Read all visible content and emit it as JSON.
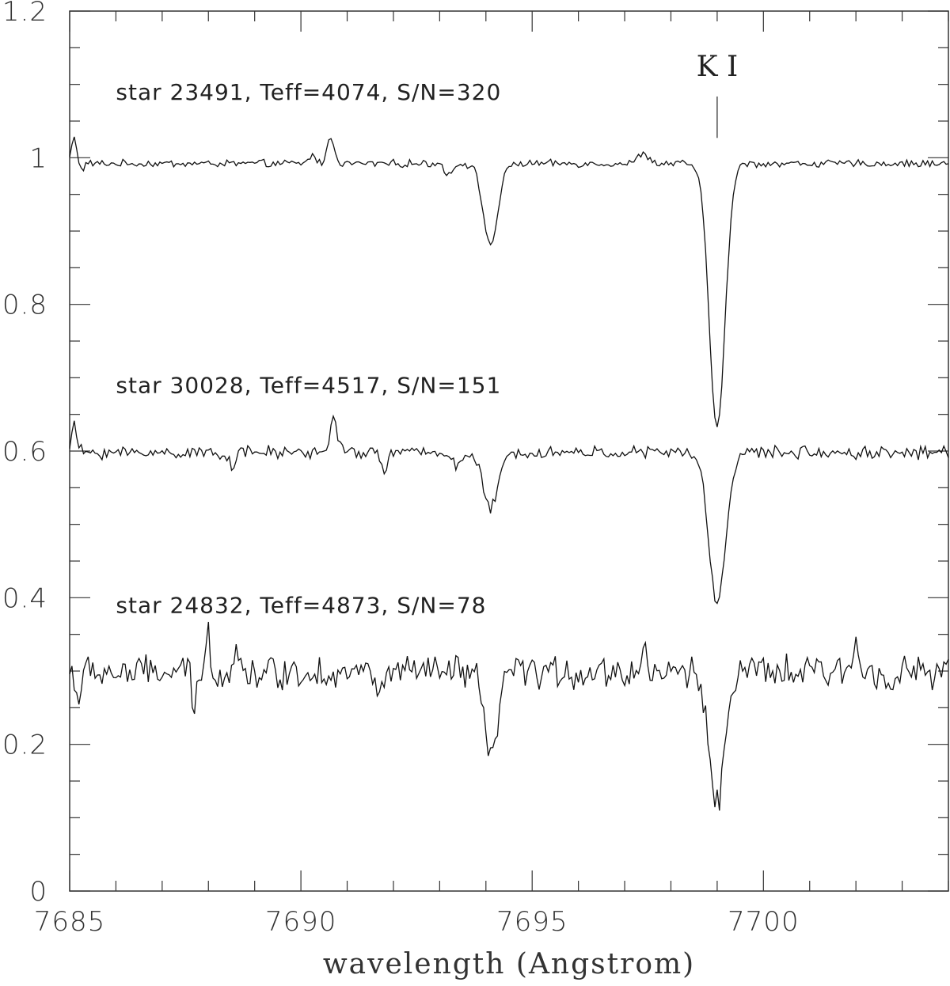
{
  "chart_data": {
    "type": "line",
    "xlabel": "wavelength (Angstrom)",
    "ylabel": "",
    "xlim": [
      7685,
      7704
    ],
    "ylim": [
      0,
      1.2
    ],
    "x_ticks": [
      7685,
      7690,
      7695,
      7700
    ],
    "x_tick_labels": [
      "7685",
      "7690",
      "7695",
      "7700"
    ],
    "y_ticks": [
      0,
      0.2,
      0.4,
      0.6,
      0.8,
      1,
      1.2
    ],
    "y_tick_labels": [
      "0",
      "0.2",
      "0.4",
      "0.6",
      "0.8",
      "1",
      "1.2"
    ],
    "line_marker": {
      "label": "K I",
      "x": 7699.0,
      "y_top": 1.09,
      "y_bottom": 1.04
    },
    "grid": false,
    "series": [
      {
        "label": "star 23491, Teff=4074, S/N=320",
        "label_pos": [
          7686.0,
          1.09
        ],
        "baseline": 0.992,
        "noise": 0.004,
        "features": [
          {
            "x": 7685.1,
            "depth": -0.035,
            "width": 0.06
          },
          {
            "x": 7685.25,
            "depth": 0.01,
            "width": 0.05
          },
          {
            "x": 7690.65,
            "depth": -0.035,
            "width": 0.08
          },
          {
            "x": 7690.25,
            "depth": -0.012,
            "width": 0.07
          },
          {
            "x": 7693.2,
            "depth": 0.015,
            "width": 0.08
          },
          {
            "x": 7694.1,
            "depth": 0.11,
            "width": 0.16
          },
          {
            "x": 7697.4,
            "depth": -0.015,
            "width": 0.1
          },
          {
            "x": 7699.0,
            "depth": 0.36,
            "width": 0.17
          }
        ]
      },
      {
        "label": "star 30028, Teff=4517, S/N=151",
        "label_pos": [
          7686.0,
          0.69
        ],
        "baseline": 0.598,
        "noise": 0.007,
        "features": [
          {
            "x": 7685.1,
            "depth": -0.035,
            "width": 0.06
          },
          {
            "x": 7690.7,
            "depth": -0.045,
            "width": 0.08
          },
          {
            "x": 7688.5,
            "depth": 0.02,
            "width": 0.06
          },
          {
            "x": 7691.8,
            "depth": 0.02,
            "width": 0.08
          },
          {
            "x": 7693.4,
            "depth": 0.02,
            "width": 0.08
          },
          {
            "x": 7694.1,
            "depth": 0.075,
            "width": 0.17
          },
          {
            "x": 7699.0,
            "depth": 0.205,
            "width": 0.18
          }
        ]
      },
      {
        "label": "star 24832, Teff=4873, S/N=78",
        "label_pos": [
          7686.0,
          0.39
        ],
        "baseline": 0.298,
        "noise": 0.018,
        "features": [
          {
            "x": 7685.2,
            "depth": 0.04,
            "width": 0.05
          },
          {
            "x": 7687.7,
            "depth": 0.05,
            "width": 0.05
          },
          {
            "x": 7688.0,
            "depth": -0.05,
            "width": 0.05
          },
          {
            "x": 7688.6,
            "depth": -0.04,
            "width": 0.05
          },
          {
            "x": 7691.7,
            "depth": 0.04,
            "width": 0.05
          },
          {
            "x": 7694.1,
            "depth": 0.12,
            "width": 0.14
          },
          {
            "x": 7697.4,
            "depth": -0.04,
            "width": 0.05
          },
          {
            "x": 7702.0,
            "depth": -0.045,
            "width": 0.06
          },
          {
            "x": 7699.0,
            "depth": 0.17,
            "width": 0.17
          }
        ]
      }
    ]
  }
}
